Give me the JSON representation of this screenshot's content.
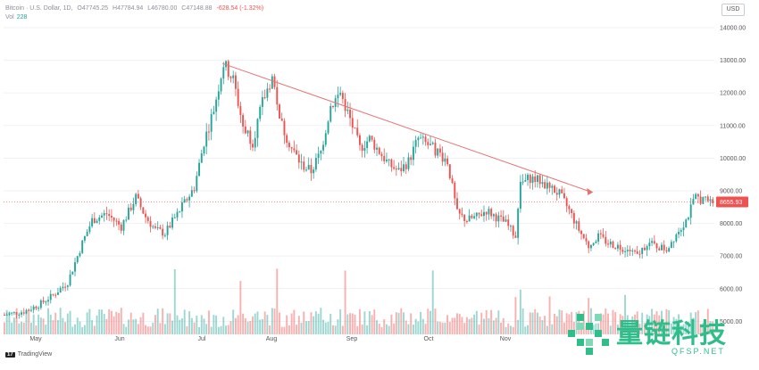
{
  "header": {
    "symbol": "Bitcoin · U.S. Dollar, 1D,",
    "open": "O47745.25",
    "high": "H47784.94",
    "low": "L46780.00",
    "close": "C47148.88",
    "change": "-628.54 (-1.32%)",
    "volume_label": "Vol",
    "volume_value": "228"
  },
  "currency_button": "USD",
  "last_price": "8655.93",
  "footer": {
    "brand": "TradingView",
    "logo_text": "17"
  },
  "watermark": {
    "name": "量链科技",
    "url": "QFSP.NET"
  },
  "colors": {
    "up": "#26a69a",
    "down": "#ef5350",
    "trendline": "#e57373",
    "watermark": "#2fbe8a"
  },
  "chart_data": {
    "type": "candlestick",
    "x_ticks": [
      "May",
      "Jun",
      "Jul",
      "Aug",
      "Sep",
      "Oct",
      "Nov"
    ],
    "y_ticks": [
      "5000.00",
      "6000.00",
      "7000.00",
      "8000.00",
      "9000.00",
      "10000.00",
      "11000.00",
      "12000.00",
      "13000.00",
      "14000.00"
    ],
    "ylim": [
      4600,
      14300
    ],
    "close_path": [
      [
        0,
        5200
      ],
      [
        8,
        5300
      ],
      [
        14,
        5500
      ],
      [
        20,
        5800
      ],
      [
        26,
        6200
      ],
      [
        32,
        7400
      ],
      [
        36,
        8100
      ],
      [
        42,
        8300
      ],
      [
        48,
        7900
      ],
      [
        54,
        8800
      ],
      [
        58,
        8200
      ],
      [
        62,
        7800
      ],
      [
        66,
        7700
      ],
      [
        72,
        8400
      ],
      [
        78,
        9100
      ],
      [
        82,
        10500
      ],
      [
        86,
        11500
      ],
      [
        90,
        12900
      ],
      [
        94,
        12400
      ],
      [
        98,
        11000
      ],
      [
        102,
        10500
      ],
      [
        106,
        11700
      ],
      [
        110,
        12500
      ],
      [
        114,
        11000
      ],
      [
        118,
        10300
      ],
      [
        122,
        9800
      ],
      [
        126,
        9600
      ],
      [
        130,
        10200
      ],
      [
        134,
        11600
      ],
      [
        138,
        12000
      ],
      [
        142,
        11200
      ],
      [
        146,
        10300
      ],
      [
        150,
        10600
      ],
      [
        154,
        10200
      ],
      [
        158,
        9800
      ],
      [
        162,
        9600
      ],
      [
        166,
        9900
      ],
      [
        170,
        10600
      ],
      [
        174,
        10400
      ],
      [
        178,
        10200
      ],
      [
        182,
        9900
      ],
      [
        186,
        8300
      ],
      [
        190,
        8100
      ],
      [
        194,
        8200
      ],
      [
        198,
        8400
      ],
      [
        202,
        8200
      ],
      [
        206,
        8000
      ],
      [
        210,
        7600
      ],
      [
        212,
        9200
      ],
      [
        216,
        9400
      ],
      [
        220,
        9300
      ],
      [
        224,
        9100
      ],
      [
        228,
        8900
      ],
      [
        232,
        8400
      ],
      [
        236,
        7800
      ],
      [
        240,
        7300
      ],
      [
        244,
        7600
      ],
      [
        248,
        7400
      ],
      [
        252,
        7300
      ],
      [
        256,
        7200
      ],
      [
        260,
        7000
      ],
      [
        264,
        7400
      ],
      [
        268,
        7300
      ],
      [
        272,
        7200
      ],
      [
        276,
        7700
      ],
      [
        280,
        8100
      ],
      [
        284,
        8800
      ],
      [
        288,
        8700
      ],
      [
        292,
        8655
      ]
    ],
    "trendline": [
      [
        90,
        12900
      ],
      [
        240,
        9000
      ]
    ],
    "last_value": 8655.93
  }
}
